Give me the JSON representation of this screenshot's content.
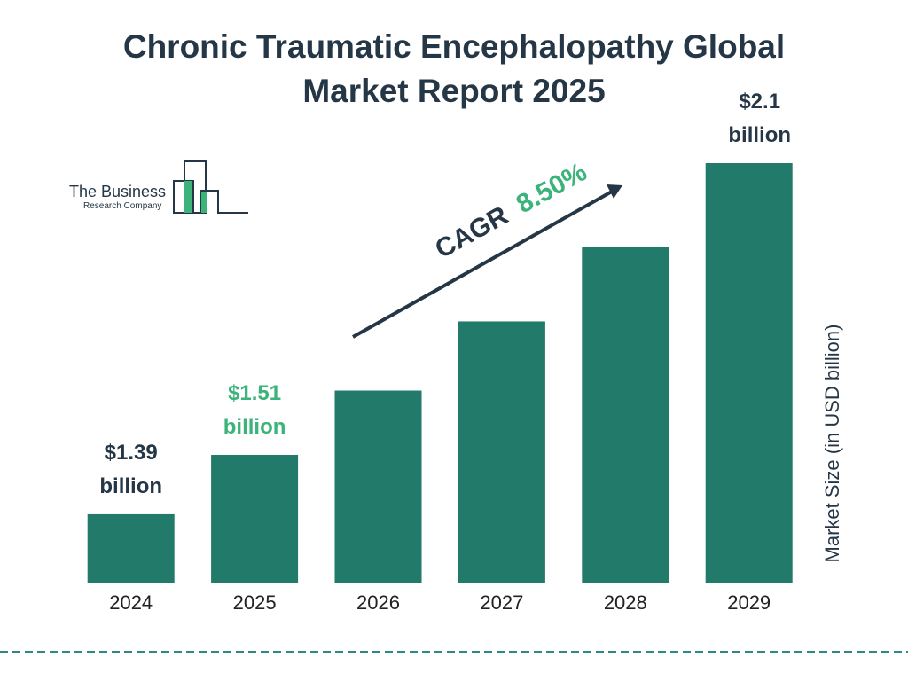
{
  "chart_data": {
    "type": "bar",
    "title": "Chronic Traumatic Encephalopathy Global Market Report 2025",
    "categories": [
      "2024",
      "2025",
      "2026",
      "2027",
      "2028",
      "2029"
    ],
    "values": [
      1.39,
      1.51,
      1.64,
      1.78,
      1.93,
      2.1
    ],
    "value_labels": [
      "$1.39 billion",
      "$1.51 billion",
      null,
      null,
      null,
      "$2.1 billion"
    ],
    "value_label_colors": [
      "#253746",
      "#3cb37a",
      null,
      null,
      null,
      "#253746"
    ],
    "color": "#217a6a",
    "ylim": [
      1.25,
      2.1
    ],
    "y_axis_label": "Market Size (in USD billion)",
    "annotation": {
      "label": "CAGR",
      "value": "8.50%"
    }
  },
  "logo": {
    "line1": "The Business",
    "line2": "Research Company"
  }
}
